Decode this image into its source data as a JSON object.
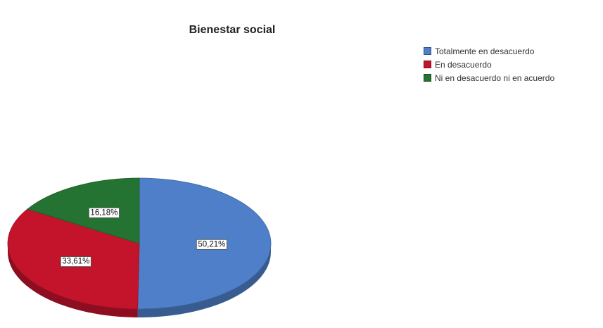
{
  "chart_data": {
    "type": "pie",
    "title": "Bienestar social",
    "categories": [
      "Totalmente en desacuerdo",
      "En desacuerdo",
      "Ni en desacuerdo ni en acuerdo"
    ],
    "values": [
      50.21,
      33.61,
      16.18
    ],
    "value_labels": [
      "50,21%",
      "33,61%",
      "16,18%"
    ],
    "colors": [
      "#4e7fc8",
      "#c4142c",
      "#257332"
    ],
    "legend_position": "top-right",
    "style": "3d"
  }
}
